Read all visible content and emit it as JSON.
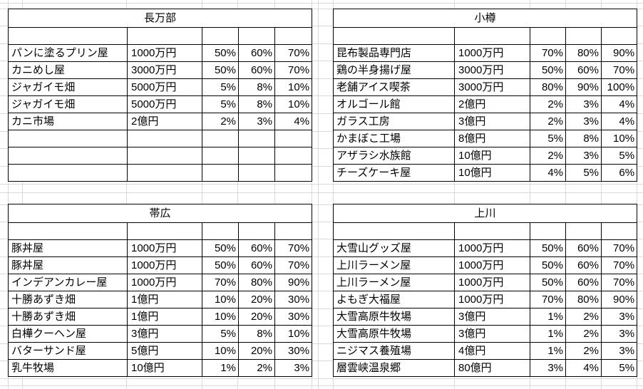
{
  "colors": {
    "background": "#ffffff",
    "table_border": "#000000",
    "gridline": "#d9d9d9",
    "text": "#000000"
  },
  "tables": [
    {
      "title": "長万部",
      "rows": [
        [
          "パンに塗るプリン屋",
          "1000万円",
          "50%",
          "60%",
          "70%"
        ],
        [
          "カニめし屋",
          "3000万円",
          "50%",
          "60%",
          "70%"
        ],
        [
          "ジャガイモ畑",
          "5000万円",
          "5%",
          "8%",
          "10%"
        ],
        [
          "ジャガイモ畑",
          "5000万円",
          "5%",
          "8%",
          "10%"
        ],
        [
          "カニ市場",
          "2億円",
          "2%",
          "3%",
          "4%"
        ],
        [
          "",
          "",
          "",
          "",
          ""
        ],
        [
          "",
          "",
          "",
          "",
          ""
        ],
        [
          "",
          "",
          "",
          "",
          ""
        ]
      ]
    },
    {
      "title": "小樽",
      "rows": [
        [
          "昆布製品専門店",
          "1000万円",
          "70%",
          "80%",
          "90%"
        ],
        [
          "鶏の半身揚げ屋",
          "3000万円",
          "50%",
          "60%",
          "70%"
        ],
        [
          "老舗アイス喫茶",
          "3000万円",
          "80%",
          "90%",
          "100%"
        ],
        [
          "オルゴール館",
          "2億円",
          "2%",
          "3%",
          "4%"
        ],
        [
          "ガラス工房",
          "3億円",
          "2%",
          "3%",
          "4%"
        ],
        [
          "かまぼこ工場",
          "8億円",
          "5%",
          "8%",
          "10%"
        ],
        [
          "アザラシ水族館",
          "10億円",
          "2%",
          "3%",
          "5%"
        ],
        [
          "チーズケーキ屋",
          "10億円",
          "4%",
          "5%",
          "6%"
        ]
      ]
    },
    {
      "title": "帯広",
      "rows": [
        [
          "豚丼屋",
          "1000万円",
          "50%",
          "60%",
          "70%"
        ],
        [
          "豚丼屋",
          "1000万円",
          "50%",
          "60%",
          "70%"
        ],
        [
          "インデアンカレー屋",
          "1000万円",
          "70%",
          "80%",
          "90%"
        ],
        [
          "十勝あずき畑",
          "1億円",
          "10%",
          "20%",
          "30%"
        ],
        [
          "十勝あずき畑",
          "1億円",
          "10%",
          "20%",
          "30%"
        ],
        [
          "白樺クーヘン屋",
          "3億円",
          "5%",
          "8%",
          "10%"
        ],
        [
          "バターサンド屋",
          "5億円",
          "10%",
          "20%",
          "30%"
        ],
        [
          "乳牛牧場",
          "10億円",
          "1%",
          "2%",
          "3%"
        ]
      ]
    },
    {
      "title": "上川",
      "rows": [
        [
          "大雪山グッズ屋",
          "1000万円",
          "50%",
          "60%",
          "70%"
        ],
        [
          "上川ラーメン屋",
          "1000万円",
          "50%",
          "60%",
          "70%"
        ],
        [
          "上川ラーメン屋",
          "1000万円",
          "50%",
          "60%",
          "70%"
        ],
        [
          "よもぎ大福屋",
          "1000万円",
          "70%",
          "80%",
          "90%"
        ],
        [
          "大雪高原牛牧場",
          "3億円",
          "1%",
          "2%",
          "3%"
        ],
        [
          "大雪高原牛牧場",
          "3億円",
          "1%",
          "2%",
          "3%"
        ],
        [
          "ニジマス養殖場",
          "4億円",
          "1%",
          "2%",
          "3%"
        ],
        [
          "層雲峡温泉郷",
          "80億円",
          "3%",
          "4%",
          "5%"
        ]
      ]
    }
  ]
}
